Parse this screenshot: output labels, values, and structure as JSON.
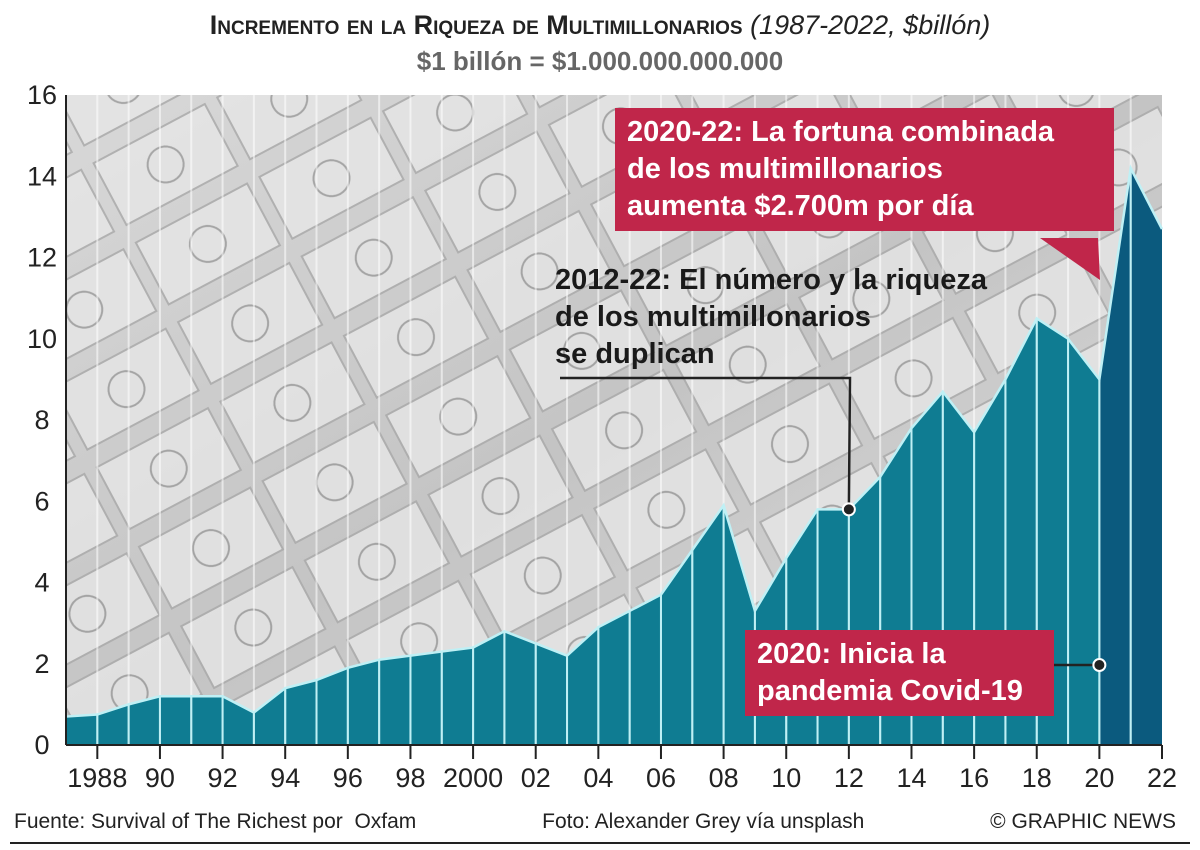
{
  "chart_data": {
    "type": "area",
    "title": "Incremento en la Riqueza de Multimillonarios",
    "title_note": "(1987-2022, $billón)",
    "subtitle": "$1 billón = $1.000.000.000.000",
    "xlabel": "",
    "ylabel": "",
    "ylim": [
      0,
      16
    ],
    "xlim": [
      1987,
      2022
    ],
    "yticks": [
      "0",
      "2",
      "4",
      "6",
      "8",
      "10",
      "12",
      "14",
      "16"
    ],
    "xtick_labels": [
      {
        "year": 1988,
        "label": "1988"
      },
      {
        "year": 1990,
        "label": "90"
      },
      {
        "year": 1992,
        "label": "92"
      },
      {
        "year": 1994,
        "label": "94"
      },
      {
        "year": 1996,
        "label": "96"
      },
      {
        "year": 1998,
        "label": "98"
      },
      {
        "year": 2000,
        "label": "2000"
      },
      {
        "year": 2002,
        "label": "02"
      },
      {
        "year": 2004,
        "label": "04"
      },
      {
        "year": 2006,
        "label": "06"
      },
      {
        "year": 2008,
        "label": "08"
      },
      {
        "year": 2010,
        "label": "10"
      },
      {
        "year": 2012,
        "label": "12"
      },
      {
        "year": 2014,
        "label": "14"
      },
      {
        "year": 2016,
        "label": "16"
      },
      {
        "year": 2018,
        "label": "18"
      },
      {
        "year": 2020,
        "label": "20"
      },
      {
        "year": 2022,
        "label": "22"
      }
    ],
    "x": [
      1987,
      1988,
      1989,
      1990,
      1991,
      1992,
      1993,
      1994,
      1995,
      1996,
      1997,
      1998,
      1999,
      2000,
      2001,
      2002,
      2003,
      2004,
      2005,
      2006,
      2007,
      2008,
      2009,
      2010,
      2011,
      2012,
      2013,
      2014,
      2015,
      2016,
      2017,
      2018,
      2019,
      2020,
      2021,
      2022
    ],
    "values": [
      0.7,
      0.75,
      1.0,
      1.2,
      1.2,
      1.2,
      0.8,
      1.4,
      1.6,
      1.9,
      2.1,
      2.2,
      2.3,
      2.4,
      2.8,
      2.5,
      2.2,
      2.9,
      3.3,
      3.7,
      4.8,
      5.9,
      3.3,
      4.6,
      5.8,
      5.8,
      6.6,
      7.8,
      8.7,
      7.7,
      9.0,
      10.5,
      10.0,
      9.0,
      14.2,
      12.7
    ],
    "grid": "vertical lines at each year",
    "colors": {
      "area": "#0f7c92",
      "highlight": "#0b5a7e",
      "line": "#bff0f5",
      "callout": "#c0264a"
    },
    "annotations": [
      {
        "id": "covid-2020-22",
        "lines": [
          "2020-22: La fortuna combinada",
          "de los multimillonarios",
          "aumenta $2.700m por día"
        ]
      },
      {
        "id": "2012-22",
        "lines": [
          "2012-22: El número y la riqueza",
          "de los multimillonarios",
          "se duplican"
        ]
      },
      {
        "id": "2020",
        "lines": [
          "2020: Inicia la",
          "pandemia Covid-19"
        ]
      }
    ]
  },
  "footer": {
    "source": "Fuente: Survival of The Richest por  Oxfam",
    "photo": "Foto: Alexander Grey vía unsplash",
    "copyright": "© GRAPHIC NEWS"
  }
}
